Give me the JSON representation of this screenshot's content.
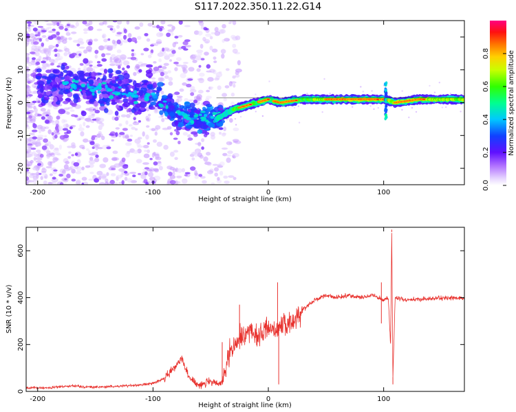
{
  "figure_title": "S117.2022.350.11.22.G14",
  "chart_data": [
    {
      "type": "heatmap",
      "xlabel": "Height of straight line (km)",
      "ylabel": "Frequency (Hz)",
      "xlim": [
        -210,
        170
      ],
      "ylim": [
        -25,
        25
      ],
      "xticks": [
        -200,
        -100,
        0,
        100
      ],
      "yticks": [
        -20,
        -10,
        0,
        10,
        20
      ],
      "colorbar": {
        "label": "Normalized spectral amplitude",
        "range": [
          0,
          1
        ],
        "ticks": [
          0.0,
          0.2,
          0.4,
          0.6,
          0.8
        ],
        "colormap": "hsv-like: white/lavender (0) -> purple -> blue -> cyan -> green -> yellow -> orange -> red -> magenta (1)"
      },
      "trend": {
        "description": "scattered energy centred near the frequency of the line; ridge descends from ~+5 Hz at -180 km to ~-5 Hz at -45 km, then returns to ~+1 Hz from 0 km to 170 km with high amplitude (red/orange) along the ridge",
        "x": [
          -200,
          -180,
          -160,
          -140,
          -120,
          -100,
          -90,
          -80,
          -70,
          -60,
          -50,
          -45,
          -40,
          -30,
          -20,
          -10,
          0,
          10,
          30,
          60,
          90,
          100,
          110,
          130,
          170
        ],
        "y": [
          4,
          6,
          5,
          4,
          2,
          3,
          0,
          -3,
          -4,
          -5,
          -5,
          -5,
          -4,
          -2,
          -1,
          0,
          1,
          0,
          1,
          1,
          1,
          1,
          0,
          1,
          1
        ]
      }
    },
    {
      "type": "line",
      "xlabel": "Height of straight line (km)",
      "ylabel": "SNR (10 * v/v)",
      "xlim": [
        -210,
        170
      ],
      "ylim": [
        0,
        700
      ],
      "xticks": [
        -200,
        -100,
        0,
        100
      ],
      "yticks": [
        0,
        200,
        400,
        600
      ],
      "color": "#e8302c",
      "series": [
        {
          "x": [
            -210,
            -190,
            -170,
            -160,
            -150,
            -130,
            -110,
            -100,
            -90,
            -80,
            -75,
            -70,
            -65,
            -60,
            -50,
            -45,
            -40,
            -37,
            -35,
            -30,
            -25,
            -20,
            -15,
            -10,
            -5,
            0,
            5,
            10,
            15,
            20,
            25,
            30,
            40,
            50,
            60,
            70,
            80,
            90,
            95,
            100,
            104,
            106,
            107,
            108,
            110,
            115,
            120,
            140,
            160,
            170
          ],
          "y": [
            15,
            15,
            25,
            20,
            18,
            22,
            28,
            35,
            55,
            110,
            150,
            70,
            40,
            30,
            40,
            30,
            40,
            70,
            150,
            180,
            230,
            240,
            270,
            230,
            250,
            280,
            260,
            280,
            280,
            290,
            320,
            350,
            390,
            410,
            400,
            410,
            400,
            410,
            400,
            390,
            400,
            200,
            680,
            60,
            400,
            395,
            390,
            395,
            400,
            395
          ]
        }
      ],
      "spikes": [
        {
          "x": -40,
          "y": 210
        },
        {
          "x": -25,
          "y": 370
        },
        {
          "x": 8,
          "y": 465
        },
        {
          "x": 9,
          "y": 30
        },
        {
          "x": 98,
          "y": 465
        },
        {
          "x": 98,
          "y": 290
        },
        {
          "x": 107,
          "y": 690
        },
        {
          "x": 108,
          "y": 30
        }
      ]
    }
  ]
}
